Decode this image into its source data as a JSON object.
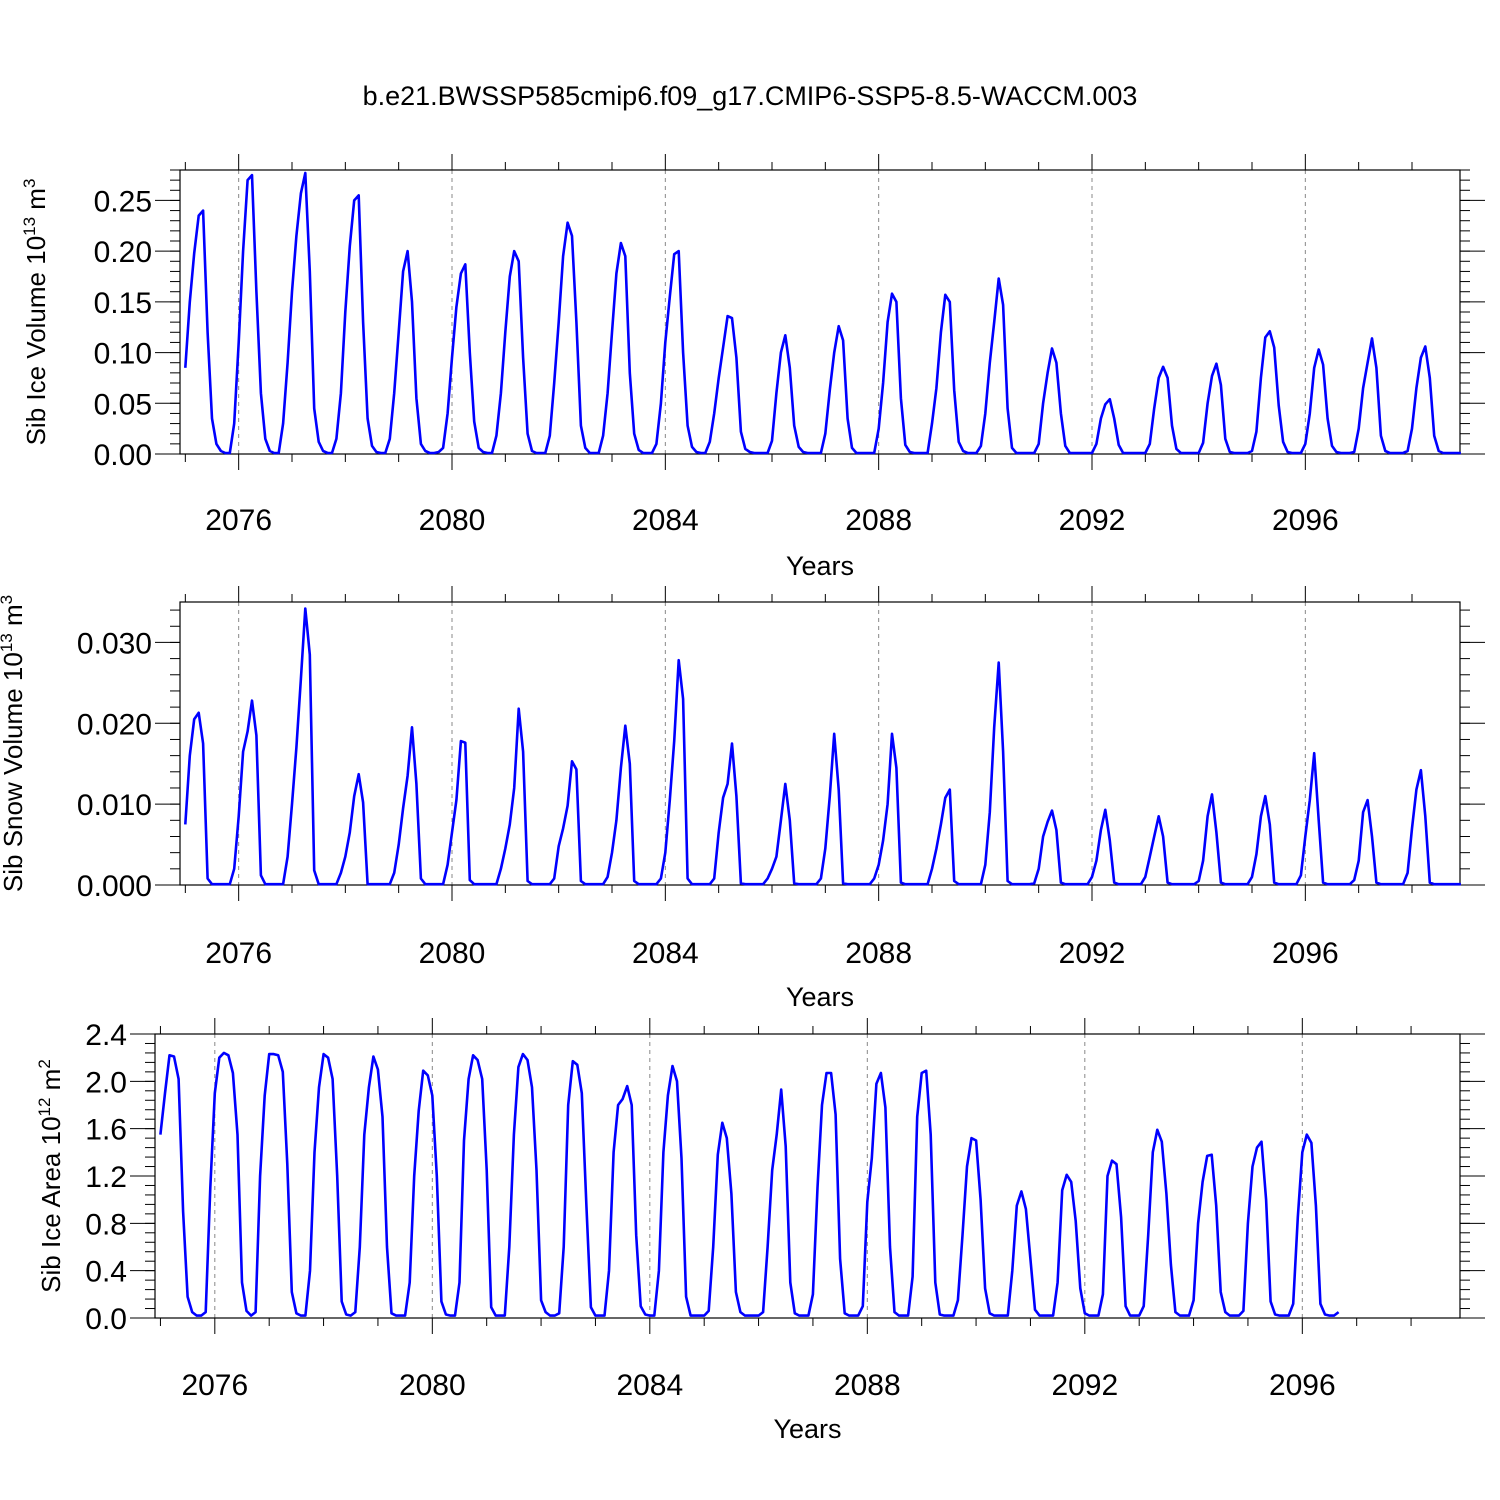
{
  "figure": {
    "title": "b.e21.BWSSP585cmip6.f09_g17.CMIP6-SSP5-8.5-WACCM.003"
  },
  "colors": {
    "line": "#0000ff",
    "frame": "#000000",
    "grid": "#888888",
    "background": "#ffffff"
  },
  "chart_data": [
    {
      "type": "line",
      "title": "",
      "xlabel": "Years",
      "ylabel": "Sib Ice Volume 10",
      "ylabel_sup": "13",
      "ylabel_unit": "m",
      "ylabel_unit_sup": "3",
      "xlim": [
        2074.9,
        2098.9
      ],
      "ylim": [
        0.0,
        0.28
      ],
      "yticks": [
        0.0,
        0.05,
        0.1,
        0.15,
        0.2,
        0.25
      ],
      "ytick_labels": [
        "0.00",
        "0.05",
        "0.10",
        "0.15",
        "0.20",
        "0.25"
      ],
      "xticks": [
        2076,
        2080,
        2084,
        2088,
        2092,
        2096
      ],
      "xtick_labels": [
        "2076",
        "2080",
        "2084",
        "2088",
        "2092",
        "2096"
      ],
      "x_grid": "dashed at major ticks",
      "series": [
        {
          "x_start": 2075.0,
          "x_step": 0.0833333,
          "peaks": [
            0.24,
            0.275,
            0.277,
            0.255,
            0.2,
            0.187,
            0.2,
            0.228,
            0.208,
            0.2,
            0.136,
            0.117,
            0.126,
            0.158,
            0.157,
            0.173,
            0.104,
            0.054,
            0.086,
            0.089,
            0.121,
            0.103,
            0.114,
            0.106
          ],
          "values": [
            0.085,
            0.15,
            0.198,
            0.235,
            0.24,
            0.12,
            0.035,
            0.01,
            0.003,
            0.001,
            0.001,
            0.03,
            0.11,
            0.2,
            0.27,
            0.275,
            0.16,
            0.06,
            0.015,
            0.003,
            0.001,
            0.001,
            0.03,
            0.09,
            0.16,
            0.215,
            0.257,
            0.277,
            0.18,
            0.045,
            0.012,
            0.003,
            0.001,
            0.001,
            0.015,
            0.06,
            0.14,
            0.205,
            0.25,
            0.255,
            0.13,
            0.035,
            0.008,
            0.002,
            0.001,
            0.001,
            0.015,
            0.06,
            0.12,
            0.18,
            0.2,
            0.15,
            0.055,
            0.01,
            0.003,
            0.001,
            0.001,
            0.002,
            0.006,
            0.04,
            0.095,
            0.145,
            0.178,
            0.187,
            0.1,
            0.032,
            0.006,
            0.002,
            0.001,
            0.001,
            0.018,
            0.06,
            0.12,
            0.175,
            0.2,
            0.19,
            0.095,
            0.02,
            0.003,
            0.001,
            0.001,
            0.001,
            0.018,
            0.07,
            0.13,
            0.195,
            0.228,
            0.215,
            0.13,
            0.028,
            0.006,
            0.001,
            0.001,
            0.001,
            0.018,
            0.06,
            0.12,
            0.178,
            0.208,
            0.195,
            0.08,
            0.02,
            0.004,
            0.001,
            0.001,
            0.001,
            0.01,
            0.05,
            0.11,
            0.155,
            0.197,
            0.2,
            0.1,
            0.028,
            0.007,
            0.002,
            0.001,
            0.001,
            0.012,
            0.04,
            0.075,
            0.105,
            0.136,
            0.134,
            0.095,
            0.022,
            0.005,
            0.002,
            0.001,
            0.001,
            0.001,
            0.001,
            0.013,
            0.06,
            0.1,
            0.117,
            0.085,
            0.028,
            0.007,
            0.002,
            0.001,
            0.001,
            0.001,
            0.001,
            0.02,
            0.063,
            0.1,
            0.126,
            0.112,
            0.035,
            0.006,
            0.001,
            0.001,
            0.001,
            0.001,
            0.001,
            0.025,
            0.07,
            0.13,
            0.158,
            0.15,
            0.055,
            0.009,
            0.002,
            0.001,
            0.001,
            0.001,
            0.001,
            0.03,
            0.065,
            0.12,
            0.157,
            0.15,
            0.063,
            0.012,
            0.003,
            0.001,
            0.001,
            0.001,
            0.008,
            0.04,
            0.09,
            0.13,
            0.173,
            0.147,
            0.045,
            0.006,
            0.001,
            0.001,
            0.001,
            0.001,
            0.001,
            0.01,
            0.05,
            0.08,
            0.104,
            0.09,
            0.04,
            0.008,
            0.001,
            0.001,
            0.001,
            0.001,
            0.001,
            0.001,
            0.01,
            0.035,
            0.049,
            0.054,
            0.035,
            0.009,
            0.001,
            0.001,
            0.001,
            0.001,
            0.001,
            0.001,
            0.01,
            0.045,
            0.075,
            0.086,
            0.075,
            0.028,
            0.005,
            0.001,
            0.001,
            0.001,
            0.001,
            0.001,
            0.011,
            0.05,
            0.077,
            0.089,
            0.068,
            0.015,
            0.002,
            0.001,
            0.001,
            0.001,
            0.001,
            0.003,
            0.022,
            0.075,
            0.115,
            0.121,
            0.105,
            0.048,
            0.012,
            0.002,
            0.001,
            0.001,
            0.001,
            0.01,
            0.04,
            0.085,
            0.103,
            0.088,
            0.035,
            0.008,
            0.002,
            0.001,
            0.001,
            0.001,
            0.002,
            0.025,
            0.065,
            0.09,
            0.114,
            0.085,
            0.018,
            0.003,
            0.001,
            0.001,
            0.001,
            0.001,
            0.003,
            0.025,
            0.065,
            0.095,
            0.106,
            0.075,
            0.018,
            0.003,
            0.001,
            0.001,
            0.001,
            0.001,
            0.001
          ]
        }
      ]
    },
    {
      "type": "line",
      "title": "",
      "xlabel": "Years",
      "ylabel": "Sib Snow Volume 10",
      "ylabel_sup": "13",
      "ylabel_unit": "m",
      "ylabel_unit_sup": "3",
      "xlim": [
        2074.9,
        2098.9
      ],
      "ylim": [
        0.0,
        0.035
      ],
      "yticks": [
        0.0,
        0.01,
        0.02,
        0.03
      ],
      "ytick_labels": [
        "0.000",
        "0.010",
        "0.020",
        "0.030"
      ],
      "xticks": [
        2076,
        2080,
        2084,
        2088,
        2092,
        2096
      ],
      "xtick_labels": [
        "2076",
        "2080",
        "2084",
        "2088",
        "2092",
        "2096"
      ],
      "x_grid": "dashed at major ticks",
      "series": [
        {
          "x_start": 2075.0,
          "x_step": 0.0833333,
          "values": [
            0.0075,
            0.016,
            0.0205,
            0.0213,
            0.0175,
            0.0008,
            0.0001,
            0.0001,
            0.0001,
            0.0001,
            0.0001,
            0.002,
            0.0085,
            0.0165,
            0.019,
            0.0228,
            0.0185,
            0.0012,
            0.0001,
            0.0001,
            0.0001,
            0.0001,
            0.0001,
            0.0035,
            0.01,
            0.017,
            0.0255,
            0.0342,
            0.0285,
            0.0018,
            0.0001,
            0.0001,
            0.0001,
            0.0001,
            0.0001,
            0.0015,
            0.0035,
            0.0065,
            0.011,
            0.0137,
            0.0102,
            0.0001,
            0.0001,
            0.0001,
            0.0001,
            0.0001,
            0.0001,
            0.0015,
            0.005,
            0.0095,
            0.0135,
            0.0195,
            0.0125,
            0.0008,
            0.0001,
            0.0001,
            0.0001,
            0.0001,
            0.0001,
            0.0025,
            0.0065,
            0.0105,
            0.0178,
            0.0176,
            0.0006,
            0.0001,
            0.0001,
            0.0001,
            0.0001,
            0.0001,
            0.0001,
            0.002,
            0.0045,
            0.0075,
            0.012,
            0.0218,
            0.0165,
            0.0005,
            0.0001,
            0.0001,
            0.0001,
            0.0001,
            0.0001,
            0.0008,
            0.0048,
            0.007,
            0.0098,
            0.0153,
            0.0143,
            0.0005,
            0.0001,
            0.0001,
            0.0001,
            0.0001,
            0.0001,
            0.001,
            0.004,
            0.008,
            0.0145,
            0.0197,
            0.015,
            0.0005,
            0.0001,
            0.0001,
            0.0001,
            0.0001,
            0.0001,
            0.0008,
            0.004,
            0.0105,
            0.0178,
            0.0278,
            0.023,
            0.0008,
            0.0001,
            0.0001,
            0.0001,
            0.0001,
            0.0001,
            0.0008,
            0.0065,
            0.0108,
            0.0125,
            0.0175,
            0.011,
            0.0002,
            0.0001,
            0.0001,
            0.0001,
            0.0001,
            0.0001,
            0.0008,
            0.002,
            0.0035,
            0.008,
            0.0125,
            0.008,
            0.0002,
            0.0001,
            0.0001,
            0.0001,
            0.0001,
            0.0001,
            0.0008,
            0.0045,
            0.011,
            0.0187,
            0.0118,
            0.0002,
            0.0001,
            0.0001,
            0.0001,
            0.0001,
            0.0001,
            0.0001,
            0.0008,
            0.0025,
            0.0055,
            0.01,
            0.0187,
            0.0145,
            0.0003,
            0.0001,
            0.0001,
            0.0001,
            0.0001,
            0.0001,
            0.0001,
            0.002,
            0.0045,
            0.0075,
            0.0108,
            0.0118,
            0.0005,
            0.0001,
            0.0001,
            0.0001,
            0.0001,
            0.0001,
            0.0001,
            0.0025,
            0.009,
            0.0195,
            0.0275,
            0.0165,
            0.0005,
            0.0001,
            0.0001,
            0.0001,
            0.0001,
            0.0001,
            0.0002,
            0.002,
            0.006,
            0.0078,
            0.0092,
            0.0068,
            0.0003,
            0.0001,
            0.0001,
            0.0001,
            0.0001,
            0.0001,
            0.0001,
            0.001,
            0.003,
            0.0068,
            0.0093,
            0.0055,
            0.0003,
            0.0001,
            0.0001,
            0.0001,
            0.0001,
            0.0001,
            0.0001,
            0.001,
            0.0035,
            0.006,
            0.0085,
            0.006,
            0.0003,
            0.0001,
            0.0001,
            0.0001,
            0.0001,
            0.0001,
            0.0001,
            0.0005,
            0.003,
            0.0085,
            0.0112,
            0.0065,
            0.0003,
            0.0001,
            0.0001,
            0.0001,
            0.0001,
            0.0001,
            0.0001,
            0.001,
            0.0038,
            0.0085,
            0.011,
            0.0075,
            0.0003,
            0.0001,
            0.0001,
            0.0001,
            0.0001,
            0.0001,
            0.0012,
            0.006,
            0.0105,
            0.0163,
            0.008,
            0.0003,
            0.0001,
            0.0001,
            0.0001,
            0.0001,
            0.0001,
            0.0001,
            0.0006,
            0.003,
            0.009,
            0.0105,
            0.006,
            0.0003,
            0.0001,
            0.0001,
            0.0001,
            0.0001,
            0.0001,
            0.0001,
            0.0015,
            0.007,
            0.0118,
            0.0142,
            0.0085,
            0.0003,
            0.0001,
            0.0001,
            0.0001,
            0.0001,
            0.0001,
            0.0001,
            0.0001
          ]
        }
      ]
    },
    {
      "type": "line",
      "title": "",
      "xlabel": "Years",
      "ylabel": "Sib Ice Area 10",
      "ylabel_sup": "12",
      "ylabel_unit": "m",
      "ylabel_unit_sup": "2",
      "xlim": [
        2074.9,
        2098.9
      ],
      "ylim": [
        0.0,
        2.4
      ],
      "yticks": [
        0.0,
        0.4,
        0.8,
        1.2,
        1.6,
        2.0,
        2.4
      ],
      "ytick_labels": [
        "0.0",
        "0.4",
        "0.8",
        "1.2",
        "1.6",
        "2.0",
        "2.4"
      ],
      "xticks": [
        2076,
        2080,
        2084,
        2088,
        2092,
        2096
      ],
      "xtick_labels": [
        "2076",
        "2080",
        "2084",
        "2088",
        "2092",
        "2096"
      ],
      "x_grid": "dashed at major ticks",
      "series": [
        {
          "x_start": 2075.0,
          "x_step": 0.0833333,
          "values": [
            1.55,
            1.9,
            2.22,
            2.21,
            2.02,
            0.9,
            0.18,
            0.05,
            0.02,
            0.02,
            0.05,
            1.1,
            1.9,
            2.2,
            2.24,
            2.22,
            2.07,
            1.55,
            0.3,
            0.06,
            0.02,
            0.05,
            1.2,
            1.88,
            2.23,
            2.23,
            2.22,
            2.08,
            1.3,
            0.22,
            0.04,
            0.02,
            0.02,
            0.4,
            1.4,
            1.95,
            2.23,
            2.2,
            2.02,
            1.2,
            0.14,
            0.03,
            0.02,
            0.05,
            0.6,
            1.55,
            1.95,
            2.21,
            2.1,
            1.7,
            0.6,
            0.04,
            0.02,
            0.02,
            0.02,
            0.3,
            1.2,
            1.75,
            2.09,
            2.05,
            1.88,
            1.2,
            0.14,
            0.03,
            0.02,
            0.02,
            0.3,
            1.5,
            2.02,
            2.22,
            2.18,
            2.02,
            1.25,
            0.09,
            0.02,
            0.02,
            0.02,
            0.6,
            1.55,
            2.12,
            2.23,
            2.18,
            1.95,
            1.25,
            0.15,
            0.05,
            0.02,
            0.02,
            0.04,
            0.6,
            1.8,
            2.17,
            2.14,
            1.9,
            0.95,
            0.09,
            0.02,
            0.02,
            0.02,
            0.4,
            1.4,
            1.8,
            1.85,
            1.96,
            1.8,
            0.7,
            0.1,
            0.03,
            0.02,
            0.02,
            0.4,
            1.4,
            1.88,
            2.13,
            2.0,
            1.35,
            0.18,
            0.02,
            0.02,
            0.02,
            0.02,
            0.06,
            0.6,
            1.38,
            1.65,
            1.52,
            1.05,
            0.22,
            0.05,
            0.02,
            0.02,
            0.02,
            0.02,
            0.05,
            0.6,
            1.25,
            1.55,
            1.93,
            1.45,
            0.3,
            0.04,
            0.02,
            0.02,
            0.02,
            0.2,
            1.1,
            1.8,
            2.07,
            2.07,
            1.72,
            0.5,
            0.04,
            0.02,
            0.02,
            0.02,
            0.1,
            0.98,
            1.35,
            1.98,
            2.07,
            1.78,
            0.6,
            0.05,
            0.02,
            0.02,
            0.02,
            0.35,
            1.7,
            2.07,
            2.09,
            1.55,
            0.3,
            0.03,
            0.02,
            0.02,
            0.02,
            0.15,
            0.7,
            1.28,
            1.52,
            1.5,
            1.0,
            0.25,
            0.04,
            0.02,
            0.02,
            0.02,
            0.02,
            0.4,
            0.95,
            1.07,
            0.92,
            0.5,
            0.07,
            0.02,
            0.02,
            0.02,
            0.02,
            0.3,
            1.08,
            1.21,
            1.15,
            0.82,
            0.25,
            0.04,
            0.02,
            0.02,
            0.02,
            0.2,
            1.2,
            1.33,
            1.3,
            0.85,
            0.1,
            0.02,
            0.02,
            0.02,
            0.1,
            0.7,
            1.4,
            1.59,
            1.49,
            1.05,
            0.45,
            0.05,
            0.02,
            0.02,
            0.02,
            0.15,
            0.8,
            1.15,
            1.37,
            1.38,
            0.95,
            0.22,
            0.05,
            0.02,
            0.02,
            0.02,
            0.06,
            0.8,
            1.28,
            1.44,
            1.49,
            1.0,
            0.14,
            0.03,
            0.02,
            0.02,
            0.02,
            0.12,
            0.85,
            1.4,
            1.55,
            1.48,
            0.95,
            0.12,
            0.03,
            0.02,
            0.02,
            0.05
          ]
        }
      ]
    }
  ]
}
